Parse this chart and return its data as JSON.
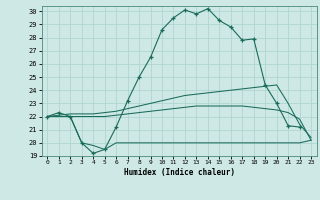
{
  "title": "",
  "xlabel": "Humidex (Indice chaleur)",
  "bg_color": "#cde8e5",
  "grid_color": "#b0d5d0",
  "line_color": "#1a6b5a",
  "xlim": [
    -0.5,
    23.5
  ],
  "ylim": [
    19,
    30.4
  ],
  "yticks": [
    19,
    20,
    21,
    22,
    23,
    24,
    25,
    26,
    27,
    28,
    29,
    30
  ],
  "xticks": [
    0,
    1,
    2,
    3,
    4,
    5,
    6,
    7,
    8,
    9,
    10,
    11,
    12,
    13,
    14,
    15,
    16,
    17,
    18,
    19,
    20,
    21,
    22,
    23
  ],
  "series": [
    {
      "x": [
        0,
        1,
        2,
        3,
        4,
        5,
        6,
        7,
        8,
        9,
        10,
        11,
        12,
        13,
        14,
        15,
        16,
        17,
        18,
        19,
        20,
        21,
        22
      ],
      "y": [
        22.0,
        22.3,
        22.0,
        20.0,
        19.2,
        19.5,
        21.2,
        23.2,
        25.0,
        26.5,
        28.6,
        29.5,
        30.1,
        29.8,
        30.2,
        29.3,
        28.8,
        27.8,
        27.9,
        24.4,
        23.0,
        21.3,
        21.2
      ],
      "marker": "+"
    },
    {
      "x": [
        0,
        1,
        2,
        3,
        4,
        5,
        6,
        7,
        8,
        9,
        10,
        11,
        12,
        13,
        14,
        15,
        16,
        17,
        18,
        19,
        20,
        21,
        22,
        23
      ],
      "y": [
        22.0,
        22.1,
        22.2,
        22.2,
        22.2,
        22.3,
        22.4,
        22.6,
        22.8,
        23.0,
        23.2,
        23.4,
        23.6,
        23.7,
        23.8,
        23.9,
        24.0,
        24.1,
        24.2,
        24.3,
        24.4,
        23.0,
        21.4,
        20.4
      ],
      "marker": null
    },
    {
      "x": [
        0,
        1,
        2,
        3,
        4,
        5,
        6,
        7,
        8,
        9,
        10,
        11,
        12,
        13,
        14,
        15,
        16,
        17,
        18,
        19,
        20,
        21,
        22,
        23
      ],
      "y": [
        22.0,
        22.0,
        22.0,
        22.0,
        22.0,
        22.0,
        22.1,
        22.2,
        22.3,
        22.4,
        22.5,
        22.6,
        22.7,
        22.8,
        22.8,
        22.8,
        22.8,
        22.8,
        22.7,
        22.6,
        22.5,
        22.3,
        21.8,
        20.2
      ],
      "marker": null
    },
    {
      "x": [
        0,
        1,
        2,
        3,
        4,
        5,
        6,
        7,
        8,
        9,
        10,
        11,
        12,
        13,
        14,
        15,
        16,
        17,
        18,
        19,
        20,
        21,
        22,
        23
      ],
      "y": [
        22.0,
        22.0,
        22.0,
        20.0,
        19.8,
        19.5,
        20.0,
        20.0,
        20.0,
        20.0,
        20.0,
        20.0,
        20.0,
        20.0,
        20.0,
        20.0,
        20.0,
        20.0,
        20.0,
        20.0,
        20.0,
        20.0,
        20.0,
        20.2
      ],
      "marker": null
    }
  ]
}
